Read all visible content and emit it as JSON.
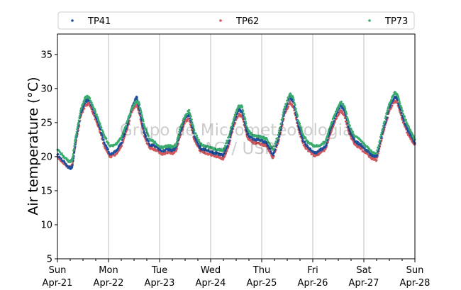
{
  "chart_data": {
    "type": "scatter",
    "ylabel": "Air temperature (°C)",
    "ylim": [
      5,
      38
    ],
    "y_ticks": [
      5,
      10,
      15,
      20,
      25,
      30,
      35
    ],
    "x_ticks": [
      {
        "day": 0,
        "label_day": "Sun",
        "label_date": "Apr-21"
      },
      {
        "day": 1,
        "label_day": "Mon",
        "label_date": "Apr-22"
      },
      {
        "day": 2,
        "label_day": "Tue",
        "label_date": "Apr-23"
      },
      {
        "day": 3,
        "label_day": "Wed",
        "label_date": "Apr-24"
      },
      {
        "day": 4,
        "label_day": "Thu",
        "label_date": "Apr-25"
      },
      {
        "day": 5,
        "label_day": "Fri",
        "label_date": "Apr-26"
      },
      {
        "day": 6,
        "label_day": "Sat",
        "label_date": "Apr-27"
      },
      {
        "day": 7,
        "label_day": "Sun",
        "label_date": "Apr-28"
      }
    ],
    "x_range_days": [
      0,
      7
    ],
    "minor_ticks_per_day": 3,
    "grid": "vertical at days",
    "legend_position": "top, above plot",
    "watermark": [
      "Grupo de Micrometeorologia",
      "IAG / USP"
    ],
    "series": [
      {
        "name": "TP41",
        "color": "#1f4e9c",
        "points": [
          [
            0.0,
            20.3
          ],
          [
            0.15,
            19.0
          ],
          [
            0.25,
            18.2
          ],
          [
            0.29,
            18.6
          ],
          [
            0.36,
            22.5
          ],
          [
            0.46,
            26.5
          ],
          [
            0.55,
            28.2
          ],
          [
            0.62,
            28.3
          ],
          [
            0.72,
            26.5
          ],
          [
            0.82,
            24.5
          ],
          [
            0.92,
            22.0
          ],
          [
            1.03,
            20.3
          ],
          [
            1.15,
            20.8
          ],
          [
            1.25,
            22.0
          ],
          [
            1.36,
            24.5
          ],
          [
            1.45,
            27.0
          ],
          [
            1.55,
            28.8
          ],
          [
            1.6,
            27.0
          ],
          [
            1.7,
            23.5
          ],
          [
            1.8,
            21.8
          ],
          [
            1.92,
            21.5
          ],
          [
            2.05,
            20.8
          ],
          [
            2.18,
            21.1
          ],
          [
            2.25,
            20.9
          ],
          [
            2.32,
            21.3
          ],
          [
            2.4,
            23.5
          ],
          [
            2.5,
            25.7
          ],
          [
            2.58,
            26.3
          ],
          [
            2.68,
            23.0
          ],
          [
            2.8,
            21.2
          ],
          [
            2.92,
            20.9
          ],
          [
            3.05,
            20.6
          ],
          [
            3.15,
            20.4
          ],
          [
            3.25,
            20.2
          ],
          [
            3.35,
            22.0
          ],
          [
            3.45,
            25.0
          ],
          [
            3.55,
            27.0
          ],
          [
            3.62,
            26.5
          ],
          [
            3.72,
            23.3
          ],
          [
            3.82,
            22.6
          ],
          [
            3.92,
            22.5
          ],
          [
            4.02,
            22.3
          ],
          [
            4.1,
            22.0
          ],
          [
            4.22,
            20.2
          ],
          [
            4.34,
            23.0
          ],
          [
            4.44,
            26.5
          ],
          [
            4.55,
            28.8
          ],
          [
            4.62,
            28.0
          ],
          [
            4.72,
            24.5
          ],
          [
            4.82,
            22.2
          ],
          [
            4.92,
            21.3
          ],
          [
            5.05,
            20.5
          ],
          [
            5.15,
            21.0
          ],
          [
            5.25,
            21.5
          ],
          [
            5.35,
            24.0
          ],
          [
            5.45,
            26.0
          ],
          [
            5.55,
            27.6
          ],
          [
            5.62,
            26.8
          ],
          [
            5.72,
            23.8
          ],
          [
            5.82,
            22.3
          ],
          [
            5.92,
            21.8
          ],
          [
            6.05,
            21.0
          ],
          [
            6.15,
            20.2
          ],
          [
            6.25,
            20.0
          ],
          [
            6.38,
            24.0
          ],
          [
            6.5,
            27.2
          ],
          [
            6.6,
            28.8
          ],
          [
            6.65,
            28.6
          ],
          [
            6.75,
            26.0
          ],
          [
            6.85,
            24.0
          ],
          [
            6.93,
            23.0
          ],
          [
            7.0,
            22.0
          ]
        ]
      },
      {
        "name": "TP62",
        "color": "#d1575d",
        "points": [
          [
            0.0,
            20.0
          ],
          [
            0.15,
            18.8
          ],
          [
            0.25,
            18.4
          ],
          [
            0.29,
            18.8
          ],
          [
            0.36,
            22.0
          ],
          [
            0.46,
            26.0
          ],
          [
            0.55,
            27.6
          ],
          [
            0.62,
            27.8
          ],
          [
            0.72,
            26.0
          ],
          [
            0.82,
            24.0
          ],
          [
            0.92,
            21.5
          ],
          [
            1.03,
            20.0
          ],
          [
            1.15,
            20.4
          ],
          [
            1.25,
            21.5
          ],
          [
            1.36,
            24.0
          ],
          [
            1.45,
            26.5
          ],
          [
            1.55,
            27.8
          ],
          [
            1.6,
            26.5
          ],
          [
            1.7,
            23.0
          ],
          [
            1.8,
            21.3
          ],
          [
            1.92,
            21.0
          ],
          [
            2.05,
            20.4
          ],
          [
            2.18,
            20.7
          ],
          [
            2.25,
            20.5
          ],
          [
            2.32,
            20.8
          ],
          [
            2.4,
            23.0
          ],
          [
            2.5,
            25.2
          ],
          [
            2.58,
            25.6
          ],
          [
            2.68,
            22.5
          ],
          [
            2.8,
            20.8
          ],
          [
            2.92,
            20.5
          ],
          [
            3.05,
            20.2
          ],
          [
            3.15,
            20.0
          ],
          [
            3.25,
            19.7
          ],
          [
            3.35,
            21.5
          ],
          [
            3.45,
            24.5
          ],
          [
            3.55,
            26.2
          ],
          [
            3.62,
            25.8
          ],
          [
            3.72,
            22.8
          ],
          [
            3.82,
            22.1
          ],
          [
            3.92,
            22.0
          ],
          [
            4.02,
            21.8
          ],
          [
            4.1,
            21.5
          ],
          [
            4.22,
            19.8
          ],
          [
            4.34,
            22.5
          ],
          [
            4.44,
            26.0
          ],
          [
            4.55,
            28.0
          ],
          [
            4.62,
            27.3
          ],
          [
            4.72,
            24.0
          ],
          [
            4.82,
            21.7
          ],
          [
            4.92,
            20.8
          ],
          [
            5.05,
            20.1
          ],
          [
            5.15,
            20.6
          ],
          [
            5.25,
            21.1
          ],
          [
            5.35,
            23.5
          ],
          [
            5.45,
            25.5
          ],
          [
            5.55,
            26.8
          ],
          [
            5.62,
            26.0
          ],
          [
            5.72,
            23.3
          ],
          [
            5.82,
            21.8
          ],
          [
            5.92,
            21.3
          ],
          [
            6.05,
            20.5
          ],
          [
            6.15,
            19.7
          ],
          [
            6.25,
            19.5
          ],
          [
            6.38,
            23.5
          ],
          [
            6.5,
            26.7
          ],
          [
            6.6,
            28.2
          ],
          [
            6.65,
            28.0
          ],
          [
            6.75,
            25.5
          ],
          [
            6.85,
            23.5
          ],
          [
            6.93,
            22.5
          ],
          [
            7.0,
            21.8
          ]
        ]
      },
      {
        "name": "TP73",
        "color": "#3aaa6e",
        "points": [
          [
            0.0,
            21.0
          ],
          [
            0.15,
            19.8
          ],
          [
            0.25,
            19.2
          ],
          [
            0.29,
            19.6
          ],
          [
            0.36,
            23.0
          ],
          [
            0.46,
            27.0
          ],
          [
            0.55,
            28.8
          ],
          [
            0.62,
            28.7
          ],
          [
            0.72,
            27.0
          ],
          [
            0.82,
            25.0
          ],
          [
            0.92,
            23.0
          ],
          [
            1.03,
            21.5
          ],
          [
            1.15,
            21.8
          ],
          [
            1.25,
            22.8
          ],
          [
            1.36,
            25.0
          ],
          [
            1.45,
            27.0
          ],
          [
            1.55,
            28.2
          ],
          [
            1.6,
            27.8
          ],
          [
            1.7,
            24.5
          ],
          [
            1.8,
            22.6
          ],
          [
            1.92,
            22.0
          ],
          [
            2.05,
            21.3
          ],
          [
            2.18,
            21.6
          ],
          [
            2.25,
            21.4
          ],
          [
            2.32,
            21.7
          ],
          [
            2.4,
            24.0
          ],
          [
            2.5,
            26.0
          ],
          [
            2.58,
            26.8
          ],
          [
            2.68,
            23.8
          ],
          [
            2.8,
            21.8
          ],
          [
            2.92,
            21.5
          ],
          [
            3.05,
            21.2
          ],
          [
            3.15,
            21.0
          ],
          [
            3.25,
            20.9
          ],
          [
            3.35,
            22.8
          ],
          [
            3.45,
            25.5
          ],
          [
            3.55,
            27.5
          ],
          [
            3.62,
            27.3
          ],
          [
            3.72,
            24.0
          ],
          [
            3.82,
            23.1
          ],
          [
            3.92,
            23.0
          ],
          [
            4.02,
            22.8
          ],
          [
            4.1,
            22.6
          ],
          [
            4.22,
            21.0
          ],
          [
            4.34,
            23.5
          ],
          [
            4.44,
            27.0
          ],
          [
            4.55,
            29.2
          ],
          [
            4.62,
            28.6
          ],
          [
            4.72,
            25.2
          ],
          [
            4.82,
            23.0
          ],
          [
            4.92,
            22.0
          ],
          [
            5.05,
            21.5
          ],
          [
            5.15,
            21.7
          ],
          [
            5.25,
            22.2
          ],
          [
            5.35,
            24.5
          ],
          [
            5.45,
            26.6
          ],
          [
            5.55,
            28.0
          ],
          [
            5.62,
            27.4
          ],
          [
            5.72,
            24.5
          ],
          [
            5.82,
            23.0
          ],
          [
            5.92,
            22.5
          ],
          [
            6.05,
            21.5
          ],
          [
            6.15,
            20.7
          ],
          [
            6.25,
            20.5
          ],
          [
            6.38,
            24.5
          ],
          [
            6.5,
            27.8
          ],
          [
            6.6,
            29.4
          ],
          [
            6.65,
            29.2
          ],
          [
            6.75,
            26.8
          ],
          [
            6.85,
            24.8
          ],
          [
            6.93,
            23.5
          ],
          [
            7.0,
            22.5
          ]
        ]
      }
    ]
  }
}
